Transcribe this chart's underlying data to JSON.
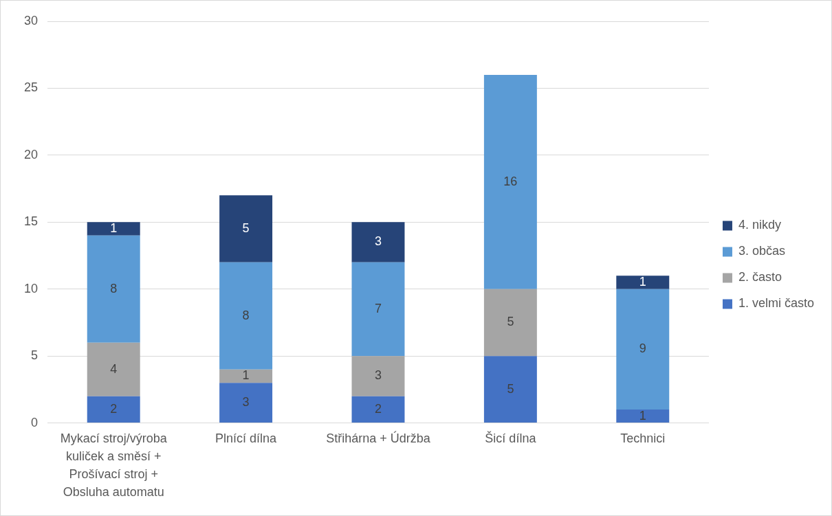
{
  "chart_data": {
    "type": "bar",
    "stacked": true,
    "categories": [
      "Mykací stroj/výroba kuliček a směsí + Prošívací stroj + Obsluha automatu",
      "Plnící dílna",
      "Střihárna + Údržba",
      "Šicí dílna",
      "Technici"
    ],
    "series": [
      {
        "name": "1. velmi často",
        "color": "#4472c4",
        "values": [
          2,
          3,
          2,
          5,
          1
        ]
      },
      {
        "name": "2. často",
        "color": "#a5a5a5",
        "values": [
          4,
          1,
          3,
          5,
          null
        ]
      },
      {
        "name": "3. občas",
        "color": "#5b9bd5",
        "values": [
          8,
          8,
          7,
          16,
          9
        ]
      },
      {
        "name": "4. nikdy",
        "color": "#264478",
        "values": [
          1,
          5,
          3,
          null,
          1
        ]
      }
    ],
    "ylim": [
      0,
      30
    ],
    "yticks": [
      0,
      5,
      10,
      15,
      20,
      25,
      30
    ],
    "grid": "y",
    "legend": "right",
    "data_labels": true
  }
}
